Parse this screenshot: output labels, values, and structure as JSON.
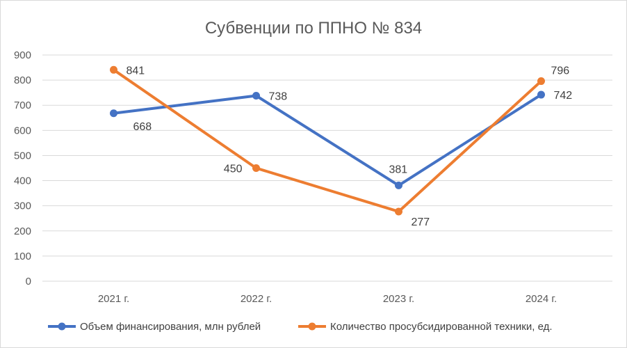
{
  "chart_data": {
    "type": "line",
    "title": "Субвенции по ППНО № 834",
    "categories": [
      "2021 г.",
      "2022 г.",
      "2023 г.",
      "2024 г."
    ],
    "ylim": [
      0,
      900
    ],
    "yticks": [
      0,
      100,
      200,
      300,
      400,
      500,
      600,
      700,
      800,
      900
    ],
    "grid": true,
    "legend_position": "bottom",
    "series": [
      {
        "name": "Объем финансирования, млн рублей",
        "color": "#4472c4",
        "values": [
          668,
          738,
          381,
          742
        ],
        "label_position": [
          "below",
          "right",
          "above",
          "right"
        ]
      },
      {
        "name": "Количество просубсидированной техники, ед.",
        "color": "#ed7d31",
        "values": [
          841,
          450,
          277,
          796
        ],
        "label_position": [
          "right",
          "left",
          "below",
          "right-above"
        ]
      }
    ]
  }
}
